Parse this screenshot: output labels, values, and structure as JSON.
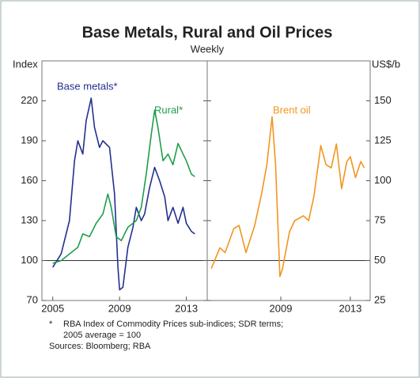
{
  "chart_data": [
    {
      "type": "line",
      "title": "Base Metals, Rural and Oil Prices",
      "subtitle": "Weekly",
      "ylabel": "Index",
      "xlim": [
        2004.35,
        2014.25
      ],
      "xticks": [
        2005,
        2009,
        2013
      ],
      "ylim": [
        70,
        250
      ],
      "yticks": [
        70,
        100,
        130,
        160,
        190,
        220
      ],
      "axis_side": "left",
      "reference_line": 100,
      "series": [
        {
          "name": "Base metals*",
          "color": "#23308e",
          "x": [
            2005,
            2005.5,
            2006,
            2006.3,
            2006.5,
            2006.8,
            2007.0,
            2007.3,
            2007.5,
            2007.8,
            2008.0,
            2008.4,
            2008.7,
            2008.9,
            2009.0,
            2009.2,
            2009.5,
            2009.8,
            2010.0,
            2010.3,
            2010.5,
            2010.8,
            2011.1,
            2011.4,
            2011.7,
            2011.9,
            2012.2,
            2012.5,
            2012.8,
            2013.0,
            2013.3,
            2013.5
          ],
          "values": [
            95,
            105,
            130,
            175,
            190,
            180,
            205,
            222,
            200,
            185,
            190,
            185,
            150,
            95,
            78,
            80,
            110,
            125,
            140,
            130,
            135,
            155,
            170,
            160,
            148,
            130,
            140,
            128,
            140,
            128,
            122,
            120
          ]
        },
        {
          "name": "Rural*",
          "color": "#1e9e4a",
          "x": [
            2005,
            2005.5,
            2006,
            2006.5,
            2006.8,
            2007.2,
            2007.6,
            2008.0,
            2008.3,
            2008.5,
            2008.8,
            2009.1,
            2009.5,
            2010.0,
            2010.3,
            2010.6,
            2010.9,
            2011.1,
            2011.3,
            2011.6,
            2011.9,
            2012.2,
            2012.5,
            2012.8,
            2013.0,
            2013.3,
            2013.5
          ],
          "values": [
            98,
            100,
            105,
            110,
            120,
            118,
            128,
            135,
            150,
            140,
            118,
            115,
            125,
            130,
            140,
            165,
            195,
            213,
            200,
            175,
            180,
            172,
            188,
            180,
            175,
            165,
            163
          ]
        }
      ]
    },
    {
      "type": "line",
      "ylabel": "US$/b",
      "xlim": [
        2004.77,
        2014.14
      ],
      "xticks": [
        2009,
        2013
      ],
      "ylim": [
        25,
        175
      ],
      "yticks": [
        25,
        50,
        75,
        100,
        125,
        150
      ],
      "axis_side": "right",
      "series": [
        {
          "name": "Brent oil",
          "color": "#f2951e",
          "x": [
            2005,
            2005.5,
            2005.8,
            2006.3,
            2006.6,
            2007.0,
            2007.5,
            2007.9,
            2008.2,
            2008.5,
            2008.7,
            2008.95,
            2009.1,
            2009.5,
            2009.8,
            2010.3,
            2010.6,
            2010.9,
            2011.3,
            2011.6,
            2011.9,
            2012.2,
            2012.5,
            2012.8,
            2013.0,
            2013.3,
            2013.6,
            2013.8
          ],
          "values": [
            45,
            58,
            55,
            70,
            72,
            55,
            72,
            92,
            110,
            140,
            110,
            40,
            45,
            68,
            75,
            78,
            75,
            90,
            122,
            110,
            108,
            123,
            95,
            112,
            115,
            102,
            112,
            108
          ]
        }
      ]
    }
  ],
  "footnote_marker": "*",
  "footnote": [
    "RBA Index of Commodity Prices sub-indices; SDR terms;",
    "2005 average = 100"
  ],
  "sources": "Sources: Bloomberg; RBA"
}
